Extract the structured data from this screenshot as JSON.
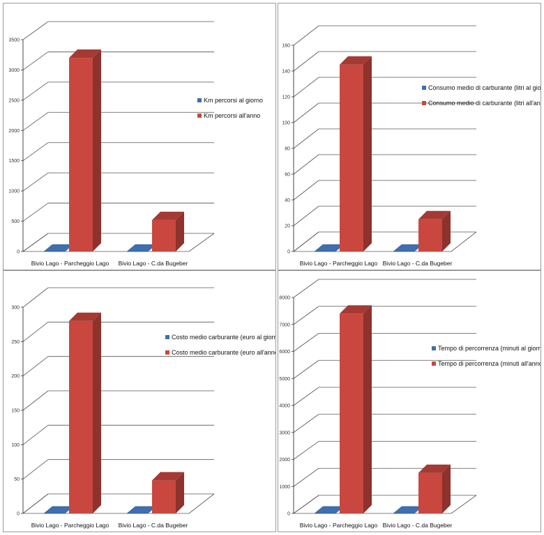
{
  "colors": {
    "series_day": "#3f6fb0",
    "series_year": "#c9473f",
    "gridline": "#555555",
    "axis": "#333333"
  },
  "chart_data": [
    {
      "type": "bar",
      "categories": [
        "Bivio Lago - Parcheggio Lago",
        "Bivio Lago - C.da Bugeber"
      ],
      "series": [
        {
          "name": "Km percorsi al giorno",
          "values": [
            9,
            1.7
          ]
        },
        {
          "name": "Km percorsi all'anno",
          "values": [
            3200,
            520
          ]
        }
      ],
      "ylim": [
        0,
        3500
      ],
      "yticks": [
        0,
        500,
        1000,
        1500,
        2000,
        2500,
        3000,
        3500
      ],
      "legend": "right",
      "grid": true
    },
    {
      "type": "bar",
      "categories": [
        "Bivio Lago - Parcheggio Lago",
        "Bivio Lago - C.da Bugeber"
      ],
      "series": [
        {
          "name": "Consumo medio di carburante (litri al giorno)",
          "values": [
            0.4,
            0.08
          ]
        },
        {
          "name": "Consumo medio di carburante (litri all'anno)",
          "values": [
            145,
            25
          ]
        }
      ],
      "ylim": [
        0,
        160
      ],
      "yticks": [
        0,
        20,
        40,
        60,
        80,
        100,
        120,
        140,
        160
      ],
      "legend": "right",
      "grid": true
    },
    {
      "type": "bar",
      "categories": [
        "Bivio Lago - Parcheggio Lago",
        "Bivio Lago - C.da Bugeber"
      ],
      "series": [
        {
          "name": "Costo medio carburante (euro al giorno)",
          "values": [
            0.8,
            0.14
          ]
        },
        {
          "name": "Costo medio carburante (euro all'anno)",
          "values": [
            280,
            48
          ]
        }
      ],
      "ylim": [
        0,
        300
      ],
      "yticks": [
        0,
        50,
        100,
        150,
        200,
        250,
        300
      ],
      "legend": "right",
      "grid": true
    },
    {
      "type": "bar",
      "categories": [
        "Bivio Lago - Parcheggio Lago",
        "Bivio Lago - C.da Bugeber"
      ],
      "series": [
        {
          "name": "Tempo di percorrenza (minuti al giorno)",
          "values": [
            20,
            4
          ]
        },
        {
          "name": "Tempo di percorrenza (minuti all'anno)",
          "values": [
            7400,
            1500
          ]
        }
      ],
      "ylim": [
        0,
        8000
      ],
      "yticks": [
        0,
        1000,
        2000,
        3000,
        4000,
        5000,
        6000,
        7000,
        8000
      ],
      "legend": "right",
      "grid": true
    }
  ]
}
